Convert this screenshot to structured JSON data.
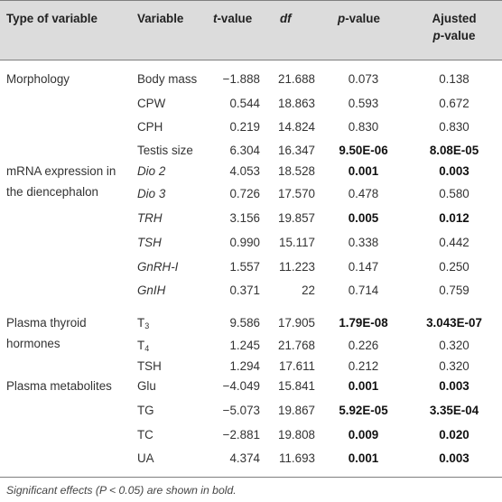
{
  "headers": {
    "type": "Type of variable",
    "variable": "Variable",
    "t_italic": "t",
    "t_rest": "-value",
    "df": "df",
    "p_italic": "p",
    "p_rest": "-value",
    "adj_line1": "Ajusted",
    "adj_line2_italic": "p",
    "adj_line2_rest": "-value"
  },
  "groups": [
    {
      "line1": "Morphology",
      "line2": ""
    },
    {
      "line1": "mRNA expression in",
      "line2": "the diencephalon"
    },
    {
      "line1": "Plasma thyroid",
      "line2": "hormones"
    },
    {
      "line1": "Plasma metabolites",
      "line2": ""
    }
  ],
  "rows": [
    {
      "variable": "Body mass",
      "t": "−1.888",
      "df": "21.688",
      "p": "0.073",
      "adj": "0.138"
    },
    {
      "variable": "CPW",
      "t": "0.544",
      "df": "18.863",
      "p": "0.593",
      "adj": "0.672"
    },
    {
      "variable": "CPH",
      "t": "0.219",
      "df": "14.824",
      "p": "0.830",
      "adj": "0.830"
    },
    {
      "variable": "Testis size",
      "t": "6.304",
      "df": "16.347",
      "p": "9.50E-06",
      "adj": "8.08E-05"
    },
    {
      "variable": "Dio 2",
      "t": "4.053",
      "df": "18.528",
      "p": "0.001",
      "adj": "0.003"
    },
    {
      "variable": "Dio 3",
      "t": "0.726",
      "df": "17.570",
      "p": "0.478",
      "adj": "0.580"
    },
    {
      "variable": "TRH",
      "t": "3.156",
      "df": "19.857",
      "p": "0.005",
      "adj": "0.012"
    },
    {
      "variable": "TSH",
      "t": "0.990",
      "df": "15.117",
      "p": "0.338",
      "adj": "0.442"
    },
    {
      "variable": "GnRH-I",
      "t": "1.557",
      "df": "11.223",
      "p": "0.147",
      "adj": "0.250"
    },
    {
      "variable": "GnIH",
      "t": "0.371",
      "df": "22",
      "p": "0.714",
      "adj": "0.759"
    },
    {
      "variable": "T",
      "sub": "3",
      "t": "9.586",
      "df": "17.905",
      "p": "1.79E-08",
      "adj": "3.043E-07"
    },
    {
      "variable": "T",
      "sub": "4",
      "t": "1.245",
      "df": "21.768",
      "p": "0.226",
      "adj": "0.320"
    },
    {
      "variable": "TSH",
      "t": "1.294",
      "df": "17.611",
      "p": "0.212",
      "adj": "0.320"
    },
    {
      "variable": "Glu",
      "t": "−4.049",
      "df": "15.841",
      "p": "0.001",
      "adj": "0.003"
    },
    {
      "variable": "TG",
      "t": "−5.073",
      "df": "19.867",
      "p": "5.92E-05",
      "adj": "3.35E-04"
    },
    {
      "variable": "TC",
      "t": "−2.881",
      "df": "19.808",
      "p": "0.009",
      "adj": "0.020"
    },
    {
      "variable": "UA",
      "t": "4.374",
      "df": "11.693",
      "p": "0.001",
      "adj": "0.003"
    }
  ],
  "footnote": "Significant effects (P < 0.05) are shown in bold."
}
